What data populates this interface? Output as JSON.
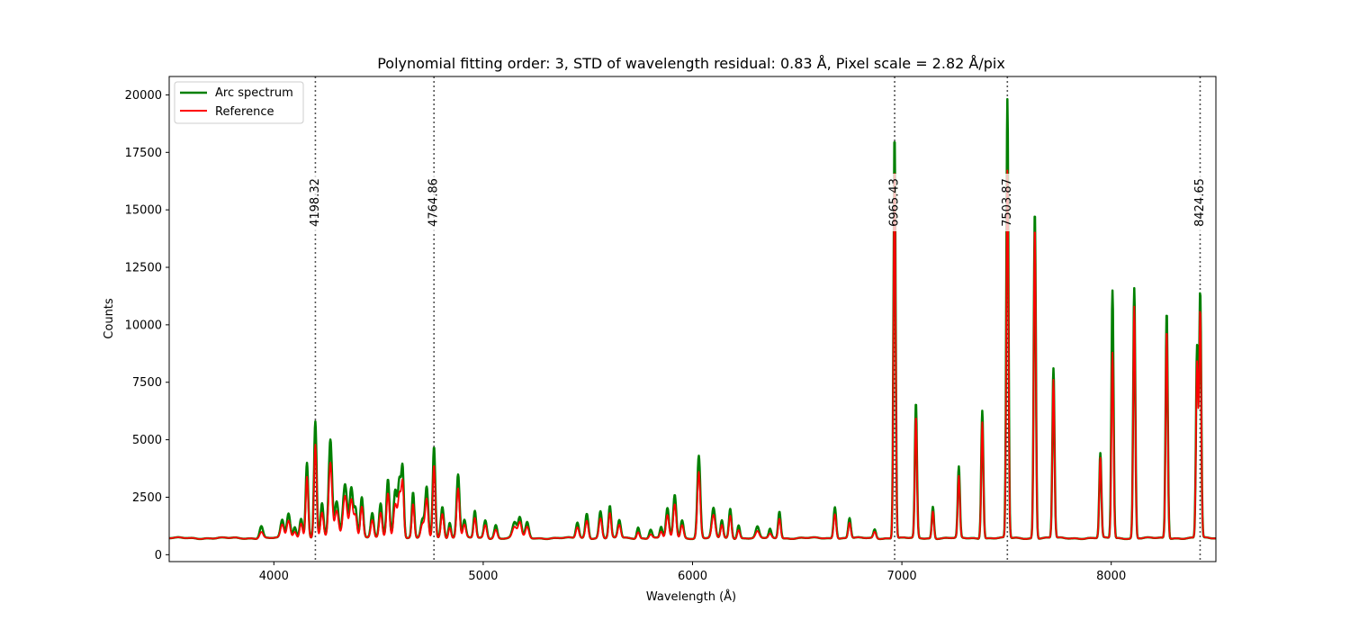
{
  "chart_data": {
    "type": "line",
    "title": "Polynomial fitting order: 3, STD of wavelength residual: 0.83 Å, Pixel scale = 2.82 Å/pix",
    "xlabel": "Wavelength (Å)",
    "ylabel": "Counts",
    "xlim": [
      3500,
      8500
    ],
    "ylim": [
      -300,
      20800
    ],
    "xticks": [
      4000,
      5000,
      6000,
      7000,
      8000
    ],
    "yticks": [
      0,
      2500,
      5000,
      7500,
      10000,
      12500,
      15000,
      17500,
      20000
    ],
    "grid": false,
    "legend_position": "top-left",
    "baseline": 720,
    "series": [
      {
        "name": "Arc spectrum",
        "color": "#008000",
        "peaks": [
          [
            3940,
            1250,
            8
          ],
          [
            4040,
            1500,
            8
          ],
          [
            4070,
            1800,
            8
          ],
          [
            4100,
            1200,
            7
          ],
          [
            4130,
            1600,
            7
          ],
          [
            4158,
            4000,
            6
          ],
          [
            4198,
            5800,
            6
          ],
          [
            4230,
            2200,
            7
          ],
          [
            4270,
            5000,
            8
          ],
          [
            4300,
            2300,
            9
          ],
          [
            4340,
            3100,
            10
          ],
          [
            4370,
            2900,
            8
          ],
          [
            4390,
            2000,
            7
          ],
          [
            4420,
            2500,
            7
          ],
          [
            4470,
            1800,
            7
          ],
          [
            4510,
            2200,
            7
          ],
          [
            4545,
            3300,
            7
          ],
          [
            4580,
            2800,
            8
          ],
          [
            4600,
            3200,
            7
          ],
          [
            4615,
            3700,
            6
          ],
          [
            4665,
            2700,
            6
          ],
          [
            4710,
            1500,
            8
          ],
          [
            4730,
            2900,
            7
          ],
          [
            4765,
            4700,
            6
          ],
          [
            4805,
            2100,
            7
          ],
          [
            4840,
            1400,
            6
          ],
          [
            4880,
            3500,
            7
          ],
          [
            4910,
            1500,
            7
          ],
          [
            4960,
            1900,
            6
          ],
          [
            5010,
            1500,
            7
          ],
          [
            5060,
            1300,
            7
          ],
          [
            5150,
            1400,
            10
          ],
          [
            5175,
            1600,
            8
          ],
          [
            5210,
            1400,
            8
          ],
          [
            5450,
            1400,
            7
          ],
          [
            5495,
            1800,
            7
          ],
          [
            5560,
            1900,
            7
          ],
          [
            5605,
            2100,
            6
          ],
          [
            5650,
            1500,
            7
          ],
          [
            5740,
            1200,
            6
          ],
          [
            5800,
            1100,
            7
          ],
          [
            5850,
            1200,
            6
          ],
          [
            5880,
            2000,
            7
          ],
          [
            5915,
            2600,
            7
          ],
          [
            5950,
            1500,
            7
          ],
          [
            6030,
            4300,
            7
          ],
          [
            6100,
            2000,
            8
          ],
          [
            6140,
            1500,
            6
          ],
          [
            6180,
            2000,
            6
          ],
          [
            6220,
            1300,
            6
          ],
          [
            6310,
            1200,
            8
          ],
          [
            6370,
            1100,
            6
          ],
          [
            6415,
            1900,
            6
          ],
          [
            6680,
            2100,
            6
          ],
          [
            6750,
            1600,
            6
          ],
          [
            6870,
            1100,
            6
          ],
          [
            6965,
            18300,
            5
          ],
          [
            7067,
            6600,
            5
          ],
          [
            7148,
            2100,
            5
          ],
          [
            7272,
            3800,
            5
          ],
          [
            7384,
            6300,
            5
          ],
          [
            7504,
            19800,
            5
          ],
          [
            7635,
            15000,
            5
          ],
          [
            7724,
            8100,
            5
          ],
          [
            7948,
            4400,
            5
          ],
          [
            8006,
            11500,
            5
          ],
          [
            8110,
            11600,
            5
          ],
          [
            8265,
            10600,
            5
          ],
          [
            8410,
            9000,
            5
          ],
          [
            8425,
            11400,
            5
          ]
        ]
      },
      {
        "name": "Reference",
        "color": "#ff0000",
        "peaks": [
          [
            3940,
            1000,
            8
          ],
          [
            4040,
            1300,
            8
          ],
          [
            4070,
            1500,
            8
          ],
          [
            4100,
            1000,
            7
          ],
          [
            4130,
            1400,
            7
          ],
          [
            4158,
            3400,
            6
          ],
          [
            4198,
            4800,
            6
          ],
          [
            4230,
            1800,
            7
          ],
          [
            4270,
            4000,
            8
          ],
          [
            4300,
            1900,
            9
          ],
          [
            4340,
            2600,
            10
          ],
          [
            4370,
            2400,
            8
          ],
          [
            4390,
            1700,
            7
          ],
          [
            4420,
            2100,
            7
          ],
          [
            4470,
            1500,
            7
          ],
          [
            4510,
            1800,
            7
          ],
          [
            4545,
            2700,
            7
          ],
          [
            4580,
            2200,
            8
          ],
          [
            4600,
            2600,
            7
          ],
          [
            4615,
            3100,
            6
          ],
          [
            4665,
            2200,
            6
          ],
          [
            4710,
            1300,
            8
          ],
          [
            4730,
            2400,
            7
          ],
          [
            4765,
            3900,
            6
          ],
          [
            4805,
            1800,
            7
          ],
          [
            4840,
            1200,
            6
          ],
          [
            4880,
            2900,
            7
          ],
          [
            4910,
            1300,
            7
          ],
          [
            4960,
            1600,
            6
          ],
          [
            5010,
            1300,
            7
          ],
          [
            5060,
            1100,
            7
          ],
          [
            5150,
            1200,
            10
          ],
          [
            5175,
            1400,
            8
          ],
          [
            5210,
            1200,
            8
          ],
          [
            5450,
            1200,
            7
          ],
          [
            5495,
            1500,
            7
          ],
          [
            5560,
            1600,
            7
          ],
          [
            5605,
            1800,
            6
          ],
          [
            5650,
            1300,
            7
          ],
          [
            5740,
            1000,
            6
          ],
          [
            5800,
            900,
            7
          ],
          [
            5850,
            1000,
            6
          ],
          [
            5880,
            1700,
            7
          ],
          [
            5915,
            2200,
            7
          ],
          [
            5950,
            1300,
            7
          ],
          [
            6030,
            3600,
            7
          ],
          [
            6100,
            1700,
            8
          ],
          [
            6140,
            1300,
            6
          ],
          [
            6180,
            1700,
            6
          ],
          [
            6220,
            1100,
            6
          ],
          [
            6310,
            1000,
            8
          ],
          [
            6370,
            900,
            6
          ],
          [
            6415,
            1600,
            6
          ],
          [
            6680,
            1800,
            6
          ],
          [
            6750,
            1400,
            6
          ],
          [
            6870,
            1000,
            6
          ],
          [
            6965,
            16900,
            5
          ],
          [
            7067,
            6000,
            5
          ],
          [
            7148,
            1900,
            5
          ],
          [
            7272,
            3400,
            5
          ],
          [
            7384,
            5800,
            5
          ],
          [
            7504,
            16700,
            5
          ],
          [
            7635,
            14300,
            5
          ],
          [
            7724,
            7600,
            5
          ],
          [
            7948,
            4200,
            5
          ],
          [
            8006,
            8800,
            5
          ],
          [
            8110,
            10800,
            5
          ],
          [
            8265,
            9800,
            5
          ],
          [
            8410,
            8300,
            5
          ],
          [
            8425,
            10600,
            5
          ]
        ]
      }
    ],
    "identified_lines": [
      "4198.32",
      "4764.86",
      "6965.43",
      "7503.87",
      "8424.65"
    ]
  }
}
